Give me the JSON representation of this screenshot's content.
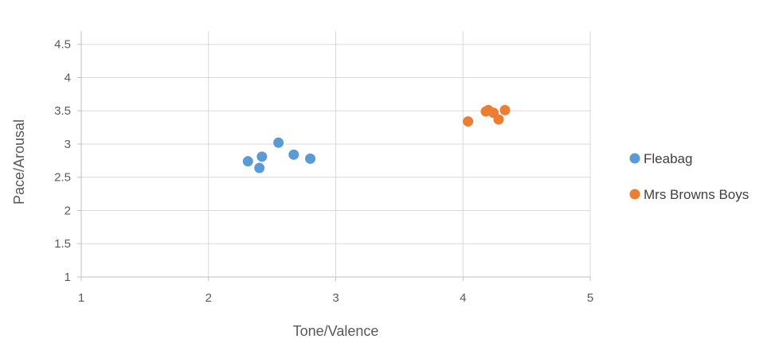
{
  "chart_data": {
    "type": "scatter",
    "title": "",
    "xlabel": "Tone/Valence",
    "ylabel": "Pace/Arousal",
    "xlim": [
      1,
      5
    ],
    "ylim": [
      1,
      4.7
    ],
    "x_ticks": [
      1,
      2,
      3,
      4,
      5
    ],
    "y_ticks": [
      1,
      1.5,
      2,
      2.5,
      3,
      3.5,
      4,
      4.5
    ],
    "grid": true,
    "legend_position": "right",
    "series": [
      {
        "name": "Fleabag",
        "color": "#5b9bd5",
        "points": [
          {
            "x": 2.31,
            "y": 2.74
          },
          {
            "x": 2.4,
            "y": 2.64
          },
          {
            "x": 2.42,
            "y": 2.81
          },
          {
            "x": 2.55,
            "y": 3.02
          },
          {
            "x": 2.67,
            "y": 2.84
          },
          {
            "x": 2.8,
            "y": 2.78
          }
        ]
      },
      {
        "name": "Mrs Browns Boys",
        "color": "#ed7d31",
        "points": [
          {
            "x": 4.04,
            "y": 3.34
          },
          {
            "x": 4.18,
            "y": 3.49
          },
          {
            "x": 4.2,
            "y": 3.51
          },
          {
            "x": 4.24,
            "y": 3.47
          },
          {
            "x": 4.28,
            "y": 3.37
          },
          {
            "x": 4.33,
            "y": 3.51
          }
        ]
      }
    ]
  }
}
